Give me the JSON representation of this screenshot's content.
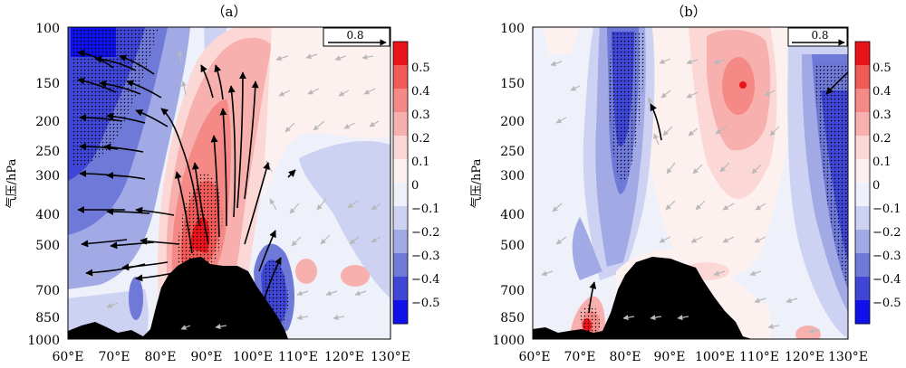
{
  "chart_data": [
    {
      "type": "heatmap",
      "panel_label": "（a）",
      "ylabel": "气压/hPa",
      "x_ticks": [
        "60°E",
        "70°E",
        "80°E",
        "90°E",
        "100°E",
        "110°E",
        "120°E",
        "130°E"
      ],
      "x_values": [
        60,
        70,
        80,
        90,
        100,
        110,
        120,
        130
      ],
      "y_ticks": [
        "100",
        "150",
        "200",
        "250",
        "300",
        "400",
        "500",
        "700",
        "850",
        "1000"
      ],
      "y_values": [
        100,
        150,
        200,
        250,
        300,
        400,
        500,
        700,
        850,
        1000
      ],
      "xlim": [
        60,
        130
      ],
      "ylim": [
        1000,
        100
      ],
      "y_scale": "log",
      "reference_vector": "0.8",
      "colorbar_ticks": [
        "0.5",
        "0.4",
        "0.3",
        "0.2",
        "0.1",
        "0",
        "−0.1",
        "−0.2",
        "−0.3",
        "−0.4",
        "−0.5"
      ],
      "colorbar_colors": [
        "#e8141a",
        "#f05a57",
        "#f58986",
        "#f8b0ae",
        "#fbd8d6",
        "#fdf1f0",
        "#eef0fa",
        "#cdd2f2",
        "#a2aae6",
        "#6f79d8",
        "#3f45d4",
        "#1010e8"
      ],
      "features": {
        "negative_west": {
          "x": [
            60,
            75
          ],
          "p": [
            100,
            650
          ],
          "value": -0.4
        },
        "positive_plume": {
          "x": [
            80,
            98
          ],
          "p": [
            100,
            620
          ],
          "value": 0.3
        },
        "positive_core": {
          "x": [
            83,
            93
          ],
          "p": [
            280,
            600
          ],
          "value": 0.5
        },
        "negative_surface_east": {
          "x": [
            99,
            107
          ],
          "p": [
            570,
            950
          ],
          "value": -0.4
        },
        "negative_upper_east": {
          "x": [
            113,
            130
          ],
          "p": [
            230,
            620
          ],
          "value": -0.1
        }
      },
      "terrain_top_hPa": 585
    },
    {
      "type": "heatmap",
      "panel_label": "（b）",
      "ylabel": "气压/hPa",
      "x_ticks": [
        "60°E",
        "70°E",
        "80°E",
        "90°E",
        "100°E",
        "110°E",
        "120°E",
        "130°E"
      ],
      "x_values": [
        60,
        70,
        80,
        90,
        100,
        110,
        120,
        130
      ],
      "y_ticks": [
        "100",
        "150",
        "200",
        "250",
        "300",
        "400",
        "500",
        "700",
        "850",
        "1000"
      ],
      "y_values": [
        100,
        150,
        200,
        250,
        300,
        400,
        500,
        700,
        850,
        1000
      ],
      "xlim": [
        60,
        130
      ],
      "ylim": [
        1000,
        100
      ],
      "y_scale": "log",
      "reference_vector": "0.8",
      "colorbar_ticks": [
        "0.5",
        "0.4",
        "0.3",
        "0.2",
        "0.1",
        "0",
        "−0.1",
        "−0.2",
        "−0.3",
        "−0.4",
        "−0.5"
      ],
      "colorbar_colors": [
        "#e8141a",
        "#f05a57",
        "#f58986",
        "#f8b0ae",
        "#fbd8d6",
        "#fdf1f0",
        "#eef0fa",
        "#cdd2f2",
        "#a2aae6",
        "#6f79d8",
        "#3f45d4",
        "#1010e8"
      ],
      "features": {
        "negative_band_west": {
          "x": [
            73,
            85
          ],
          "p": [
            100,
            660
          ],
          "value": -0.3
        },
        "positive_upper_center": {
          "x": [
            95,
            113
          ],
          "p": [
            100,
            320
          ],
          "value": 0.2
        },
        "negative_band_east": {
          "x": [
            114,
            130
          ],
          "p": [
            120,
            700
          ],
          "value": -0.3
        },
        "positive_surface_west": {
          "x": [
            68,
            75
          ],
          "p": [
            800,
            1000
          ],
          "value": 0.4
        }
      },
      "terrain_top_hPa": 585
    }
  ]
}
